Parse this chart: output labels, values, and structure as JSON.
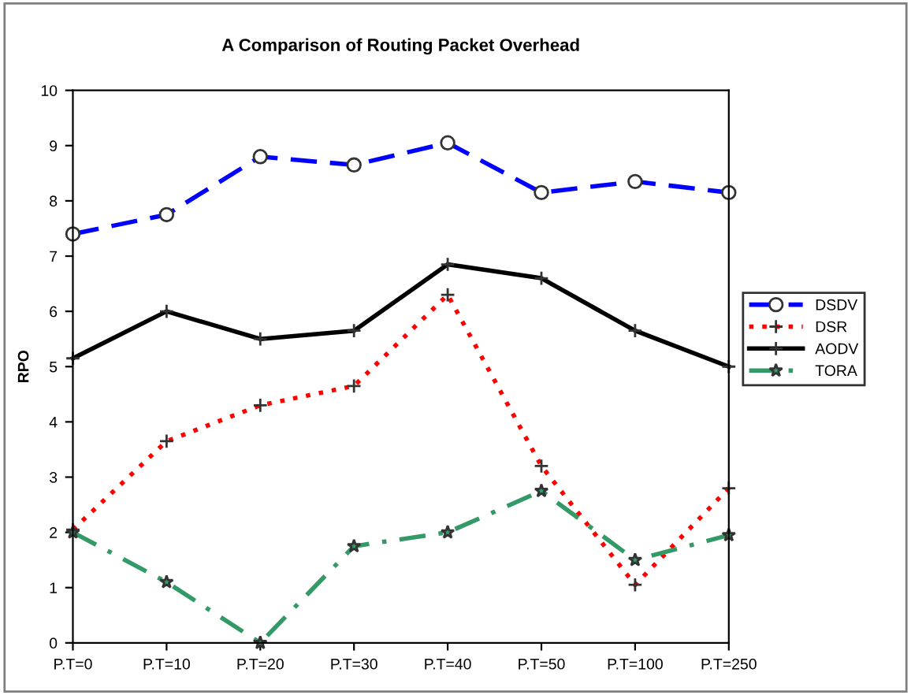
{
  "chart_data": {
    "type": "line",
    "title": "A Comparison of Routing Packet Overhead",
    "ylabel": "RPO",
    "categories": [
      "P.T=0",
      "P.T=10",
      "P.T=20",
      "P.T=30",
      "P.T=40",
      "P.T=50",
      "P.T=100",
      "P.T=250"
    ],
    "series": [
      {
        "name": "DSDV",
        "color": "#0000ff",
        "marker": "circle",
        "line_style": "dashed",
        "values": [
          7.4,
          7.75,
          8.8,
          8.65,
          9.05,
          8.15,
          8.35,
          8.15
        ]
      },
      {
        "name": "DSR",
        "color": "#ff0000",
        "marker": "cross",
        "line_style": "dotted",
        "values": [
          2.05,
          3.65,
          4.3,
          4.65,
          6.3,
          3.2,
          1.05,
          2.8
        ]
      },
      {
        "name": "AODV",
        "color": "#000000",
        "marker": "cross",
        "line_style": "solid",
        "values": [
          5.15,
          6.0,
          5.5,
          5.65,
          6.85,
          6.6,
          5.65,
          5.0
        ]
      },
      {
        "name": "TORA",
        "color": "#339966",
        "marker": "star",
        "line_style": "dashdot",
        "values": [
          2.0,
          1.1,
          0,
          1.75,
          2.0,
          2.75,
          1.5,
          1.95
        ]
      }
    ],
    "ylim": [
      0,
      10
    ],
    "yticks": [
      0,
      1,
      2,
      3,
      4,
      5,
      6,
      7,
      8,
      9,
      10
    ],
    "grid": false,
    "legend": "right"
  }
}
